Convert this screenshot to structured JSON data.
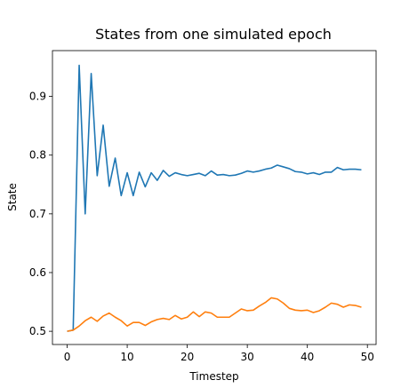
{
  "chart_data": {
    "type": "line",
    "title": "States from one simulated epoch",
    "xlabel": "Timestep",
    "ylabel": "State",
    "xlim": [
      -2.45,
      51.45
    ],
    "ylim": [
      0.4775,
      0.978
    ],
    "xticks": [
      0,
      10,
      20,
      30,
      40,
      50
    ],
    "yticks": [
      0.5,
      0.6,
      0.7,
      0.8,
      0.9
    ],
    "ytick_labels": [
      "0.5",
      "0.6",
      "0.7",
      "0.8",
      "0.9"
    ],
    "grid": false,
    "legend": "none",
    "x": [
      0,
      1,
      2,
      3,
      4,
      5,
      6,
      7,
      8,
      9,
      10,
      11,
      12,
      13,
      14,
      15,
      16,
      17,
      18,
      19,
      20,
      21,
      22,
      23,
      24,
      25,
      26,
      27,
      28,
      29,
      30,
      31,
      32,
      33,
      34,
      35,
      36,
      37,
      38,
      39,
      40,
      41,
      42,
      43,
      44,
      45,
      46,
      47,
      48,
      49
    ],
    "series": [
      {
        "color": "#1f77b4",
        "values": [
          0.5,
          0.502,
          0.953,
          0.7,
          0.939,
          0.765,
          0.851,
          0.747,
          0.795,
          0.731,
          0.77,
          0.731,
          0.771,
          0.746,
          0.77,
          0.757,
          0.774,
          0.764,
          0.77,
          0.767,
          0.765,
          0.767,
          0.769,
          0.765,
          0.773,
          0.766,
          0.767,
          0.765,
          0.766,
          0.769,
          0.773,
          0.771,
          0.773,
          0.776,
          0.778,
          0.783,
          0.78,
          0.777,
          0.772,
          0.771,
          0.768,
          0.77,
          0.767,
          0.771,
          0.771,
          0.779,
          0.775,
          0.776,
          0.776,
          0.775
        ]
      },
      {
        "color": "#ff7f0e",
        "values": [
          0.5,
          0.502,
          0.509,
          0.518,
          0.524,
          0.517,
          0.526,
          0.531,
          0.524,
          0.518,
          0.509,
          0.515,
          0.515,
          0.51,
          0.516,
          0.52,
          0.522,
          0.52,
          0.527,
          0.521,
          0.524,
          0.533,
          0.525,
          0.533,
          0.531,
          0.524,
          0.524,
          0.524,
          0.531,
          0.538,
          0.535,
          0.536,
          0.543,
          0.549,
          0.557,
          0.555,
          0.548,
          0.539,
          0.536,
          0.535,
          0.536,
          0.532,
          0.535,
          0.541,
          0.548,
          0.546,
          0.541,
          0.545,
          0.544,
          0.541
        ]
      }
    ]
  }
}
